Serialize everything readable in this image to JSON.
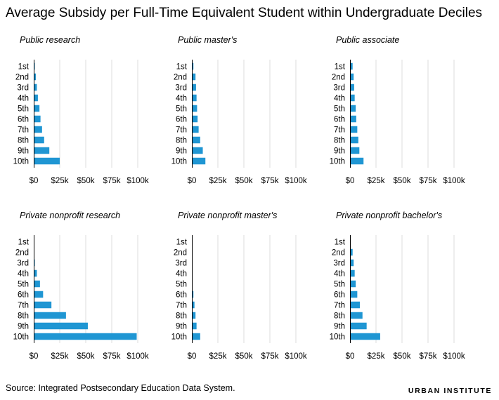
{
  "title": "Average Subsidy per Full-Time Equivalent Student within Undergraduate Deciles",
  "source": "Source: Integrated Postsecondary Education Data System.",
  "brand": "URBAN INSTITUTE",
  "bar_color": "#1f96d3",
  "chart_data": [
    {
      "type": "bar",
      "orientation": "horizontal",
      "title": "Public research",
      "categories": [
        "1st",
        "2nd",
        "3rd",
        "4th",
        "5th",
        "6th",
        "7th",
        "8th",
        "9th",
        "10th"
      ],
      "values": [
        1000,
        2000,
        3000,
        4000,
        5500,
        6500,
        8000,
        10000,
        15000,
        25000
      ],
      "xlim": [
        0,
        100000
      ],
      "x_ticks": [
        0,
        25000,
        50000,
        75000,
        100000
      ],
      "x_tick_labels": [
        "$0",
        "$25k",
        "$50k",
        "$75k",
        "$100k"
      ]
    },
    {
      "type": "bar",
      "orientation": "horizontal",
      "title": "Public master's",
      "categories": [
        "1st",
        "2nd",
        "3rd",
        "4th",
        "5th",
        "6th",
        "7th",
        "8th",
        "9th",
        "10th"
      ],
      "values": [
        1500,
        3500,
        4000,
        4500,
        5000,
        5500,
        6500,
        8000,
        10500,
        13000
      ],
      "xlim": [
        0,
        100000
      ],
      "x_ticks": [
        0,
        25000,
        50000,
        75000,
        100000
      ],
      "x_tick_labels": [
        "$0",
        "$25k",
        "$50k",
        "$75k",
        "$100k"
      ]
    },
    {
      "type": "bar",
      "orientation": "horizontal",
      "title": "Public associate",
      "categories": [
        "1st",
        "2nd",
        "3rd",
        "4th",
        "5th",
        "6th",
        "7th",
        "8th",
        "9th",
        "10th"
      ],
      "values": [
        2500,
        3500,
        4000,
        4500,
        5500,
        6000,
        7000,
        8000,
        9000,
        13000
      ],
      "xlim": [
        0,
        100000
      ],
      "x_ticks": [
        0,
        25000,
        50000,
        75000,
        100000
      ],
      "x_tick_labels": [
        "$0",
        "$25k",
        "$50k",
        "$75k",
        "$100k"
      ]
    },
    {
      "type": "bar",
      "orientation": "horizontal",
      "title": "Private nonprofit research",
      "categories": [
        "1st",
        "2nd",
        "3rd",
        "4th",
        "5th",
        "6th",
        "7th",
        "8th",
        "9th",
        "10th"
      ],
      "values": [
        0,
        0,
        1000,
        3000,
        6000,
        9000,
        17000,
        31000,
        52000,
        99000
      ],
      "xlim": [
        0,
        100000
      ],
      "x_ticks": [
        0,
        25000,
        50000,
        75000,
        100000
      ],
      "x_tick_labels": [
        "$0",
        "$25k",
        "$50k",
        "$75k",
        "$100k"
      ]
    },
    {
      "type": "bar",
      "orientation": "horizontal",
      "title": "Private nonprofit master's",
      "categories": [
        "1st",
        "2nd",
        "3rd",
        "4th",
        "5th",
        "6th",
        "7th",
        "8th",
        "9th",
        "10th"
      ],
      "values": [
        0,
        0,
        0,
        0,
        500,
        1500,
        2500,
        3500,
        4500,
        8000
      ],
      "xlim": [
        0,
        100000
      ],
      "x_ticks": [
        0,
        25000,
        50000,
        75000,
        100000
      ],
      "x_tick_labels": [
        "$0",
        "$25k",
        "$50k",
        "$75k",
        "$100k"
      ]
    },
    {
      "type": "bar",
      "orientation": "horizontal",
      "title": "Private nonprofit bachelor's",
      "categories": [
        "1st",
        "2nd",
        "3rd",
        "4th",
        "5th",
        "6th",
        "7th",
        "8th",
        "9th",
        "10th"
      ],
      "values": [
        0,
        2500,
        3500,
        4500,
        5500,
        7000,
        9500,
        12000,
        16000,
        29000
      ],
      "xlim": [
        0,
        100000
      ],
      "x_ticks": [
        0,
        25000,
        50000,
        75000,
        100000
      ],
      "x_tick_labels": [
        "$0",
        "$25k",
        "$50k",
        "$75k",
        "$100k"
      ]
    }
  ]
}
